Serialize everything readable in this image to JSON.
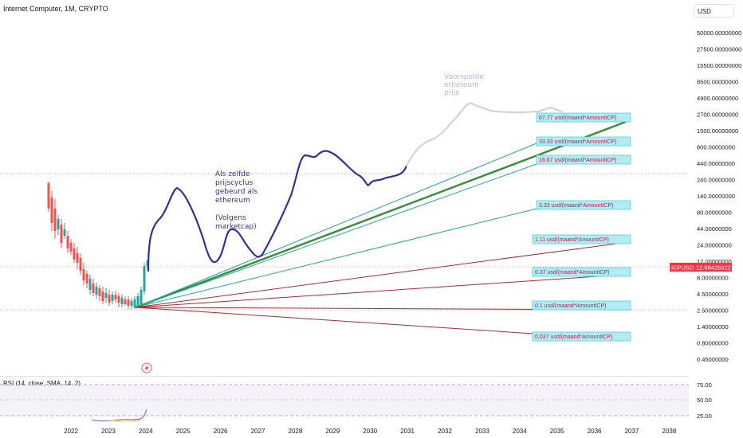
{
  "header": {
    "title": "Internet Computer, 1M, CRYPTO",
    "currency": "USD"
  },
  "price_tag": {
    "symbol": "ICPUSD",
    "value": "12.68426922",
    "color": "#f23645"
  },
  "rsi": {
    "label": "RSI (14, close, SMA, 14, 2)",
    "levels": [
      "75.00",
      "50.00",
      "25.00"
    ]
  },
  "annotations": {
    "note_lines": [
      "Als zelfde",
      "prijscyclus",
      "gebeurd als",
      "ethereum",
      "",
      "(Volgens",
      "marketcap)"
    ],
    "forecast_lines": [
      "Voorspelde",
      "ethereum",
      "prijs"
    ]
  },
  "colors": {
    "green_line": "#388e3c",
    "teal_line": "#26a69a",
    "red_line": "#b22833",
    "box_fill": "#b2ebf2",
    "drawing": "#3f2b96",
    "forecast": "#d1d4dc",
    "candle_up": "#26a69a",
    "candle_down": "#ef5350"
  },
  "chart_data": {
    "type": "line",
    "title": "Internet Computer, 1M, CRYPTO",
    "x_ticks": [
      "2022",
      "2023",
      "2024",
      "2025",
      "2026",
      "2027",
      "2028",
      "2029",
      "2030",
      "2031",
      "2032",
      "2033",
      "2034",
      "2035",
      "2036",
      "2037",
      "2038"
    ],
    "y_ticks": [
      "50000.00000000",
      "27500.00000000",
      "15500.00000000",
      "8500.00000000",
      "4900.00000000",
      "2700.00000000",
      "1500.00000000",
      "800.00000000",
      "440.00000000",
      "240.00000000",
      "140.00000000",
      "80.00000000",
      "44.00000000",
      "24.00000000",
      "12.00000000",
      "8.00000000",
      "4.50000000",
      "2.50000000",
      "1.40000000",
      "0.80000000",
      "0.45000000"
    ],
    "y_scale": "log",
    "last_price": 12.68426922,
    "fan_lines": [
      {
        "label": "67.77 usd/(maand*AmountICP)",
        "color": "green"
      },
      {
        "label": "33.33 usd/(maand*AmountICP)",
        "color": "teal"
      },
      {
        "label": "16.67 usd/(maand*AmountICP)",
        "color": "teal"
      },
      {
        "label": "3.33 usd/(maand*AmountICP)",
        "color": "teal"
      },
      {
        "label": "1.11 usd/(maand*AmountICP)",
        "color": "red"
      },
      {
        "label": "0.37 usd/(maand*AmountICP)",
        "color": "red"
      },
      {
        "label": "0.1 usd/(maand*AmountICP)",
        "color": "red"
      },
      {
        "label": "0.037 usd/(maand*AmountICP)",
        "color": "red"
      }
    ]
  }
}
